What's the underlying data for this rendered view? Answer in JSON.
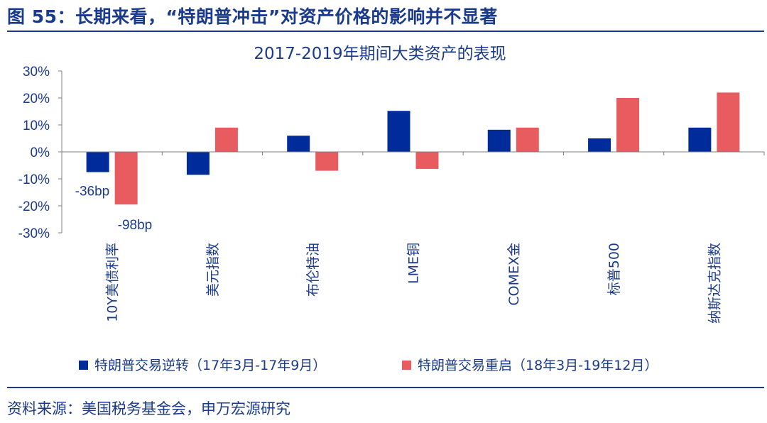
{
  "header": {
    "figure_title": "图 55：长期来看，“特朗普冲击”对资产价格的影响并不显著"
  },
  "footer": {
    "source": "资料来源：美国税务基金会，申万宏源研究"
  },
  "colors": {
    "series1": "#002b9b",
    "series2": "#e85b5e",
    "text": "#1a3a8c",
    "axis": "#7f7f7f"
  },
  "chart_data": {
    "type": "bar",
    "title": "2017-2019年期间大类资产的表现",
    "categories": [
      "10Y美债利率",
      "美元指数",
      "布伦特油",
      "LME铜",
      "COMEX金",
      "标普500",
      "纳斯达克指数"
    ],
    "series": [
      {
        "name": "特朗普交易逆转（17年3月-17年9月）",
        "values": [
          -7.5,
          -8.5,
          6,
          15.2,
          8.2,
          5,
          9
        ]
      },
      {
        "name": "特朗普交易重启（18年3月-19年12月）",
        "values": [
          -19.5,
          9,
          -7,
          -6.3,
          9,
          20,
          22
        ]
      }
    ],
    "ylim": [
      -30,
      30
    ],
    "yticks": [
      "30%",
      "20%",
      "10%",
      "0%",
      "-10%",
      "-20%",
      "-30%"
    ],
    "ytick_values": [
      30,
      20,
      10,
      0,
      -10,
      -20,
      -30
    ],
    "annotations": [
      {
        "text": "-36bp",
        "category": "10Y美债利率",
        "series": 0
      },
      {
        "text": "-98bp",
        "category": "10Y美债利率",
        "series": 1
      }
    ],
    "legend_position": "bottom",
    "grid": false
  }
}
